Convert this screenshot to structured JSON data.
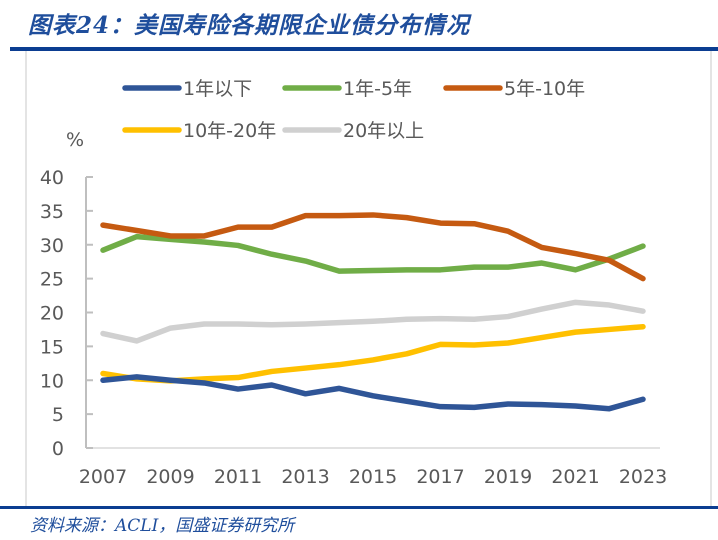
{
  "header": {
    "title": "图表24：美国寿险各期限企业债分布情况"
  },
  "footer": {
    "source": "资料来源：ACLI，国盛证券研究所"
  },
  "chart_data": {
    "type": "line",
    "title": "美国寿险各期限企业债分布情况",
    "xlabel": "",
    "ylabel": "%",
    "ylim": [
      0,
      40
    ],
    "yticks": [
      0,
      5,
      10,
      15,
      20,
      25,
      30,
      35,
      40
    ],
    "x": [
      2007,
      2008,
      2009,
      2010,
      2011,
      2012,
      2013,
      2014,
      2015,
      2016,
      2017,
      2018,
      2019,
      2020,
      2021,
      2022,
      2023
    ],
    "xtick_labels": [
      "2007",
      "2009",
      "2011",
      "2013",
      "2015",
      "2017",
      "2019",
      "2021",
      "2023"
    ],
    "legend_position": "top",
    "grid": false,
    "series": [
      {
        "name": "1年以下",
        "color": "#2f5597",
        "values": [
          10.0,
          10.5,
          10.0,
          9.6,
          8.7,
          9.3,
          8.0,
          8.8,
          7.7,
          6.9,
          6.1,
          6.0,
          6.5,
          6.4,
          6.2,
          5.8,
          7.2
        ]
      },
      {
        "name": "1年-5年",
        "color": "#70ad47",
        "values": [
          29.2,
          31.2,
          30.8,
          30.4,
          29.9,
          28.6,
          27.6,
          26.1,
          26.2,
          26.3,
          26.3,
          26.7,
          26.7,
          27.3,
          26.3,
          27.9,
          29.8
        ]
      },
      {
        "name": "5年-10年",
        "color": "#c55a11",
        "values": [
          32.9,
          32.1,
          31.3,
          31.3,
          32.6,
          32.6,
          34.3,
          34.3,
          34.4,
          34.0,
          33.2,
          33.1,
          32.0,
          29.6,
          28.7,
          27.7,
          25.0
        ]
      },
      {
        "name": "10年-20年",
        "color": "#ffc000",
        "values": [
          11.0,
          10.2,
          9.9,
          10.2,
          10.4,
          11.3,
          11.8,
          12.3,
          13.0,
          13.9,
          15.3,
          15.2,
          15.5,
          16.3,
          17.1,
          17.5,
          17.9
        ]
      },
      {
        "name": "20年以上",
        "color": "#d0d0d0",
        "values": [
          16.9,
          15.8,
          17.7,
          18.3,
          18.3,
          18.2,
          18.3,
          18.5,
          18.7,
          19.0,
          19.1,
          19.0,
          19.4,
          20.5,
          21.5,
          21.1,
          20.2
        ]
      }
    ]
  }
}
